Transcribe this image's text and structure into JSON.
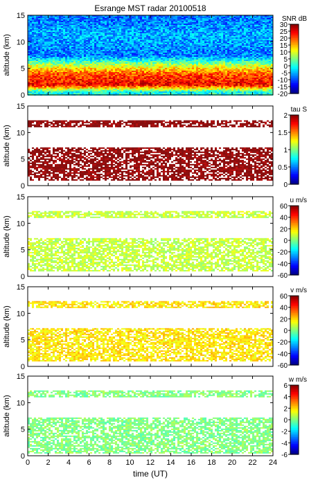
{
  "title": "Esrange MST radar 20100518",
  "xlabel": "time (UT)",
  "x_ticks": [
    "0",
    "2",
    "4",
    "6",
    "8",
    "10",
    "12",
    "14",
    "16",
    "18",
    "20",
    "22",
    "24"
  ],
  "chart_data": [
    {
      "type": "heatmap",
      "quantity": "SNR",
      "colorbar_label": "SNR dB",
      "ylabel": "altitude (km)",
      "xlim": [
        0,
        24
      ],
      "ylim": [
        0,
        15
      ],
      "y_ticks": [
        "0",
        "5",
        "10",
        "15"
      ],
      "clim": [
        -20,
        30
      ],
      "colorbar_ticks": [
        "30",
        "25",
        "20",
        "15",
        "10",
        "5",
        "0",
        "-5",
        "-10",
        "-15",
        "-20"
      ],
      "colormap": "jet",
      "profile": [
        {
          "altitude_km": 0.7,
          "value": 0
        },
        {
          "altitude_km": 2.0,
          "value": 24
        },
        {
          "altitude_km": 4.0,
          "value": 20
        },
        {
          "altitude_km": 5.5,
          "value": 10
        },
        {
          "altitude_km": 7.5,
          "value": -8
        },
        {
          "altitude_km": 11.5,
          "value": -5
        },
        {
          "altitude_km": 14.5,
          "value": -8
        }
      ]
    },
    {
      "type": "heatmap",
      "quantity": "tau",
      "colorbar_label": "tau S",
      "ylabel": "altitude (km)",
      "xlim": [
        0,
        24
      ],
      "ylim": [
        0,
        15
      ],
      "y_ticks": [
        "0",
        "5",
        "10",
        "15"
      ],
      "clim": [
        0,
        2
      ],
      "colorbar_ticks": [
        "2",
        "1.5",
        "1",
        "0.5",
        "0"
      ],
      "colormap": "jet",
      "coverage": [
        {
          "from_km": 1,
          "to_km": 7.2
        },
        {
          "from_km": 11,
          "to_km": 12.3
        }
      ],
      "dominant_value": 2
    },
    {
      "type": "heatmap",
      "quantity": "u",
      "colorbar_label": "u m/s",
      "ylabel": "altitude (km)",
      "xlim": [
        0,
        24
      ],
      "ylim": [
        0,
        15
      ],
      "y_ticks": [
        "0",
        "5",
        "10",
        "15"
      ],
      "clim": [
        -60,
        60
      ],
      "colorbar_ticks": [
        "60",
        "40",
        "20",
        "0",
        "-20",
        "-40",
        "-60"
      ],
      "colormap": "jet",
      "coverage": [
        {
          "from_km": 1,
          "to_km": 7.2
        },
        {
          "from_km": 11,
          "to_km": 12.3
        }
      ],
      "dominant_value": 8
    },
    {
      "type": "heatmap",
      "quantity": "v",
      "colorbar_label": "v m/s",
      "ylabel": "altitude (km)",
      "xlim": [
        0,
        24
      ],
      "ylim": [
        0,
        15
      ],
      "y_ticks": [
        "0",
        "5",
        "10",
        "15"
      ],
      "clim": [
        -60,
        60
      ],
      "colorbar_ticks": [
        "60",
        "40",
        "20",
        "0",
        "-20",
        "-40",
        "-60"
      ],
      "colormap": "jet",
      "coverage": [
        {
          "from_km": 1,
          "to_km": 7.2
        },
        {
          "from_km": 11,
          "to_km": 12.3
        }
      ],
      "dominant_value": 18
    },
    {
      "type": "heatmap",
      "quantity": "w",
      "colorbar_label": "w m/s",
      "ylabel": "altitude (km)",
      "xlim": [
        0,
        24
      ],
      "ylim": [
        0,
        15
      ],
      "y_ticks": [
        "0",
        "5",
        "10",
        "15"
      ],
      "clim": [
        -6,
        6
      ],
      "colorbar_ticks": [
        "6",
        "4",
        "2",
        "0",
        "-2",
        "-4",
        "-6"
      ],
      "colormap": "jet",
      "coverage": [
        {
          "from_km": 0.5,
          "to_km": 7.2
        },
        {
          "from_km": 11,
          "to_km": 12.3
        }
      ],
      "dominant_value": 0
    }
  ]
}
